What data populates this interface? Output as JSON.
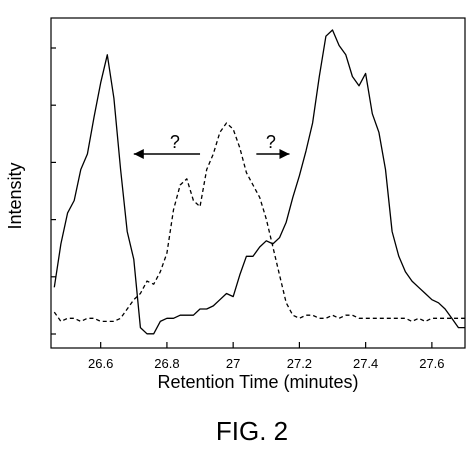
{
  "figure_caption": "FIG. 2",
  "chart_data": {
    "type": "line",
    "title": "",
    "xlabel": "Retention Time (minutes)",
    "ylabel": "Intensity",
    "xlim": [
      26.45,
      27.7
    ],
    "ylim": [
      0,
      1
    ],
    "x_ticks": [
      26.6,
      26.8,
      27.0,
      27.2,
      27.4,
      27.6
    ],
    "x_tick_labels": [
      "26.6",
      "26.8",
      "27",
      "27.2",
      "27.4",
      "27.6"
    ],
    "y_tick_count": 6,
    "y_tick_labels": [],
    "grid": false,
    "series": [
      {
        "style": "solid",
        "color": "#000000",
        "x": [
          26.46,
          26.48,
          26.5,
          26.52,
          26.54,
          26.56,
          26.58,
          26.6,
          26.62,
          26.64,
          26.66,
          26.68,
          26.7,
          26.72,
          26.74,
          26.76,
          26.78,
          26.8,
          26.82,
          26.84,
          26.86,
          26.88,
          26.9,
          26.92,
          26.94,
          26.96,
          26.98,
          27.0,
          27.02,
          27.04,
          27.06,
          27.08,
          27.1,
          27.12,
          27.14,
          27.16,
          27.18,
          27.2,
          27.22,
          27.24,
          27.26,
          27.28,
          27.3,
          27.32,
          27.34,
          27.36,
          27.38,
          27.4,
          27.42,
          27.44,
          27.46,
          27.48,
          27.5,
          27.52,
          27.54,
          27.56,
          27.58,
          27.6,
          27.62,
          27.64,
          27.66,
          27.68,
          27.7
        ],
        "y": [
          0.17,
          0.31,
          0.41,
          0.45,
          0.55,
          0.6,
          0.72,
          0.83,
          0.92,
          0.78,
          0.55,
          0.35,
          0.26,
          0.04,
          0.02,
          0.02,
          0.06,
          0.07,
          0.07,
          0.08,
          0.08,
          0.08,
          0.1,
          0.1,
          0.11,
          0.13,
          0.15,
          0.14,
          0.21,
          0.27,
          0.27,
          0.3,
          0.32,
          0.31,
          0.33,
          0.38,
          0.46,
          0.53,
          0.61,
          0.7,
          0.85,
          0.98,
          1.0,
          0.95,
          0.92,
          0.85,
          0.82,
          0.86,
          0.73,
          0.67,
          0.55,
          0.35,
          0.27,
          0.22,
          0.19,
          0.17,
          0.15,
          0.13,
          0.12,
          0.1,
          0.07,
          0.04,
          0.04
        ]
      },
      {
        "style": "dashed",
        "color": "#000000",
        "x": [
          26.46,
          26.48,
          26.5,
          26.52,
          26.54,
          26.56,
          26.58,
          26.6,
          26.62,
          26.64,
          26.66,
          26.68,
          26.7,
          26.72,
          26.74,
          26.76,
          26.78,
          26.8,
          26.82,
          26.84,
          26.86,
          26.88,
          26.9,
          26.92,
          26.94,
          26.96,
          26.98,
          27.0,
          27.02,
          27.04,
          27.06,
          27.08,
          27.1,
          27.12,
          27.14,
          27.16,
          27.18,
          27.2,
          27.22,
          27.24,
          27.26,
          27.28,
          27.3,
          27.32,
          27.34,
          27.36,
          27.38,
          27.4,
          27.42,
          27.44,
          27.46,
          27.48,
          27.5,
          27.52,
          27.54,
          27.56,
          27.58,
          27.6,
          27.62,
          27.64,
          27.66,
          27.68,
          27.7
        ],
        "y": [
          0.09,
          0.06,
          0.07,
          0.07,
          0.06,
          0.07,
          0.07,
          0.06,
          0.06,
          0.06,
          0.07,
          0.1,
          0.13,
          0.15,
          0.19,
          0.18,
          0.22,
          0.28,
          0.42,
          0.5,
          0.52,
          0.45,
          0.43,
          0.55,
          0.6,
          0.67,
          0.7,
          0.68,
          0.62,
          0.54,
          0.5,
          0.46,
          0.39,
          0.3,
          0.21,
          0.12,
          0.08,
          0.07,
          0.08,
          0.08,
          0.07,
          0.07,
          0.08,
          0.07,
          0.08,
          0.08,
          0.07,
          0.07,
          0.07,
          0.07,
          0.07,
          0.07,
          0.07,
          0.07,
          0.06,
          0.07,
          0.06,
          0.07,
          0.07,
          0.07,
          0.07,
          0.07,
          0.07
        ]
      }
    ],
    "annotations": [
      {
        "text": "?",
        "arrow_direction": "left",
        "x_from": 26.9,
        "x_to": 26.7,
        "y": 0.6
      },
      {
        "text": "?",
        "arrow_direction": "right",
        "x_from": 27.07,
        "x_to": 27.17,
        "y": 0.6
      }
    ]
  }
}
